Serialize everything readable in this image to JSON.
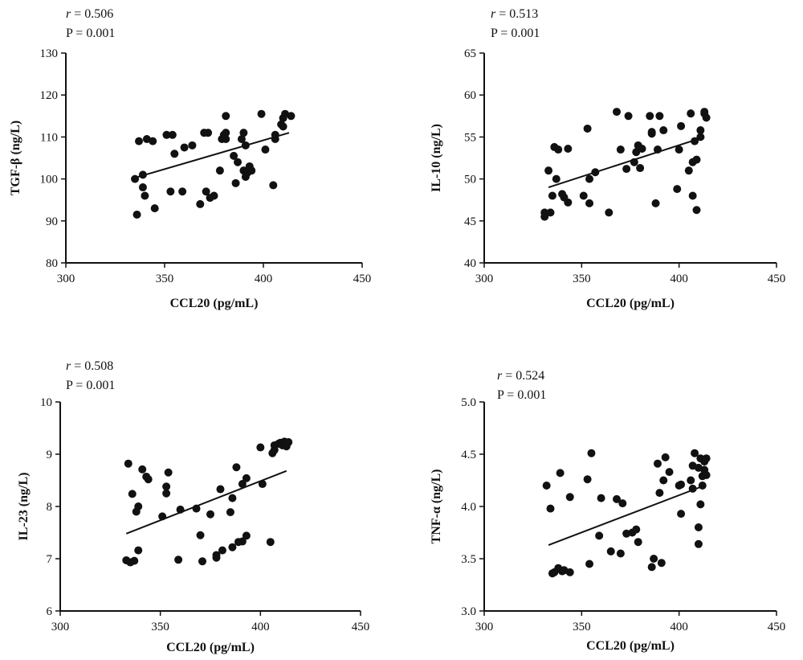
{
  "chart_data": [
    {
      "type": "scatter",
      "xlabel": "CCL20 (pg/mL)",
      "ylabel": "TGF-β (ng/L)",
      "xlim": [
        300,
        450
      ],
      "ylim": [
        80,
        130
      ],
      "xticks": [
        300,
        350,
        400,
        450
      ],
      "yticks": [
        80,
        90,
        100,
        110,
        120,
        130
      ],
      "stat_r_symbol": "r",
      "stat_r_value": " = 0.506",
      "stat_p": "P = 0.001",
      "grid": false,
      "trendline": {
        "x": [
          333,
          413
        ],
        "y": [
          100,
          111
        ]
      },
      "points": [
        [
          335,
          100
        ],
        [
          336,
          91.5
        ],
        [
          337,
          109
        ],
        [
          339,
          101
        ],
        [
          339,
          98
        ],
        [
          340,
          96
        ],
        [
          341,
          109.5
        ],
        [
          344,
          109
        ],
        [
          345,
          93
        ],
        [
          351,
          110.5
        ],
        [
          353,
          97
        ],
        [
          354,
          110.5
        ],
        [
          355,
          106
        ],
        [
          359,
          97
        ],
        [
          360,
          107.5
        ],
        [
          364,
          108
        ],
        [
          368,
          94
        ],
        [
          370,
          111
        ],
        [
          371,
          97
        ],
        [
          372,
          111
        ],
        [
          373,
          95.5
        ],
        [
          375,
          96
        ],
        [
          378,
          102
        ],
        [
          379,
          109.5
        ],
        [
          380,
          110.5
        ],
        [
          381,
          115
        ],
        [
          381,
          111
        ],
        [
          381,
          109.5
        ],
        [
          385,
          105.5
        ],
        [
          386,
          99
        ],
        [
          387,
          104
        ],
        [
          389,
          109.5
        ],
        [
          390,
          111
        ],
        [
          390,
          102
        ],
        [
          391,
          100.5
        ],
        [
          391,
          108
        ],
        [
          392,
          101.5
        ],
        [
          393,
          103
        ],
        [
          394,
          102
        ],
        [
          399,
          115.5
        ],
        [
          401,
          107
        ],
        [
          405,
          98.5
        ],
        [
          406,
          109.5
        ],
        [
          406,
          110.5
        ],
        [
          409,
          113
        ],
        [
          410,
          112.5
        ],
        [
          410,
          114.5
        ],
        [
          411,
          115.5
        ],
        [
          414,
          115
        ]
      ]
    },
    {
      "type": "scatter",
      "xlabel": "CCL20 (pg/mL)",
      "ylabel": "IL-10 (ng/L)",
      "xlim": [
        300,
        450
      ],
      "ylim": [
        40,
        65
      ],
      "xticks": [
        300,
        350,
        400,
        450
      ],
      "yticks": [
        40,
        45,
        50,
        55,
        60,
        65
      ],
      "stat_r_symbol": "r",
      "stat_r_value": " = 0.513",
      "stat_p": "P = 0.001",
      "grid": false,
      "trendline": {
        "x": [
          333,
          413
        ],
        "y": [
          49,
          55
        ]
      },
      "points": [
        [
          331,
          45.5
        ],
        [
          331,
          46
        ],
        [
          333,
          51
        ],
        [
          334,
          46
        ],
        [
          335,
          48
        ],
        [
          336,
          53.8
        ],
        [
          337,
          50
        ],
        [
          338,
          53.5
        ],
        [
          340,
          48.2
        ],
        [
          341,
          47.8
        ],
        [
          343,
          47.2
        ],
        [
          343,
          53.6
        ],
        [
          351,
          48
        ],
        [
          353,
          56
        ],
        [
          354,
          50
        ],
        [
          354,
          47.1
        ],
        [
          357,
          50.8
        ],
        [
          364,
          46
        ],
        [
          368,
          58
        ],
        [
          370,
          53.5
        ],
        [
          373,
          51.2
        ],
        [
          374,
          57.5
        ],
        [
          377,
          52
        ],
        [
          378,
          53.2
        ],
        [
          379,
          54
        ],
        [
          380,
          51.3
        ],
        [
          381,
          53.6
        ],
        [
          385,
          57.5
        ],
        [
          386,
          55.4
        ],
        [
          386,
          55.6
        ],
        [
          388,
          47.1
        ],
        [
          389,
          53.5
        ],
        [
          390,
          57.5
        ],
        [
          392,
          55.8
        ],
        [
          399,
          48.8
        ],
        [
          400,
          53.5
        ],
        [
          401,
          56.3
        ],
        [
          405,
          51
        ],
        [
          406,
          57.8
        ],
        [
          407,
          52
        ],
        [
          407,
          48
        ],
        [
          408,
          54.5
        ],
        [
          409,
          52.3
        ],
        [
          409,
          46.3
        ],
        [
          411,
          55
        ],
        [
          411,
          55.8
        ],
        [
          413,
          58
        ],
        [
          413,
          57.8
        ],
        [
          414,
          57.3
        ]
      ]
    },
    {
      "type": "scatter",
      "xlabel": "CCL20 (pg/mL)",
      "ylabel": "IL-23 (ng/L)",
      "xlim": [
        300,
        450
      ],
      "ylim": [
        6,
        10
      ],
      "xticks": [
        300,
        350,
        400,
        450
      ],
      "yticks": [
        6,
        7,
        8,
        9,
        10
      ],
      "stat_r_symbol": "r",
      "stat_r_value": " = 0.508",
      "stat_p": "P = 0.001",
      "grid": false,
      "trendline": {
        "x": [
          333,
          413
        ],
        "y": [
          7.48,
          8.68
        ]
      },
      "points": [
        [
          333,
          6.97
        ],
        [
          334,
          8.82
        ],
        [
          335,
          6.93
        ],
        [
          336,
          8.24
        ],
        [
          337,
          6.96
        ],
        [
          338,
          7.9
        ],
        [
          339,
          8.0
        ],
        [
          339,
          7.16
        ],
        [
          341,
          8.71
        ],
        [
          343,
          8.57
        ],
        [
          344,
          8.52
        ],
        [
          351,
          7.81
        ],
        [
          353,
          8.25
        ],
        [
          353,
          8.38
        ],
        [
          354,
          8.65
        ],
        [
          359,
          6.98
        ],
        [
          360,
          7.94
        ],
        [
          368,
          7.96
        ],
        [
          370,
          7.45
        ],
        [
          371,
          6.95
        ],
        [
          375,
          7.85
        ],
        [
          378,
          7.02
        ],
        [
          378,
          7.07
        ],
        [
          380,
          8.33
        ],
        [
          381,
          7.16
        ],
        [
          385,
          7.89
        ],
        [
          386,
          8.16
        ],
        [
          386,
          7.22
        ],
        [
          388,
          8.75
        ],
        [
          389,
          7.32
        ],
        [
          391,
          7.33
        ],
        [
          391,
          8.43
        ],
        [
          393,
          7.44
        ],
        [
          393,
          8.54
        ],
        [
          400,
          9.13
        ],
        [
          401,
          8.43
        ],
        [
          405,
          7.32
        ],
        [
          406,
          9.02
        ],
        [
          407,
          9.08
        ],
        [
          407,
          9.17
        ],
        [
          409,
          9.2
        ],
        [
          410,
          9.22
        ],
        [
          411,
          9.17
        ],
        [
          412,
          9.24
        ],
        [
          413,
          9.15
        ],
        [
          413,
          9.22
        ],
        [
          414,
          9.23
        ]
      ]
    },
    {
      "type": "scatter",
      "xlabel": "CCL20 (pg/mL)",
      "ylabel": "TNF-α (ng/L)",
      "xlim": [
        300,
        450
      ],
      "ylim": [
        3.0,
        5.0
      ],
      "xticks": [
        300,
        350,
        400,
        450
      ],
      "yticks": [
        "3.0",
        "3.5",
        "4.0",
        "4.5",
        "5.0"
      ],
      "stat_r_symbol": "r",
      "stat_r_value": " = 0.524",
      "stat_p": "P = 0.001",
      "grid": false,
      "trendline": {
        "x": [
          333,
          413
        ],
        "y": [
          3.63,
          4.2
        ]
      },
      "points": [
        [
          332,
          4.2
        ],
        [
          334,
          3.98
        ],
        [
          335,
          3.36
        ],
        [
          336,
          3.37
        ],
        [
          338,
          3.41
        ],
        [
          339,
          4.32
        ],
        [
          340,
          3.38
        ],
        [
          341,
          3.39
        ],
        [
          344,
          4.09
        ],
        [
          344,
          3.37
        ],
        [
          353,
          4.26
        ],
        [
          354,
          3.45
        ],
        [
          355,
          4.51
        ],
        [
          359,
          3.72
        ],
        [
          360,
          4.08
        ],
        [
          365,
          3.57
        ],
        [
          368,
          4.07
        ],
        [
          370,
          3.55
        ],
        [
          371,
          4.03
        ],
        [
          373,
          3.74
        ],
        [
          376,
          3.75
        ],
        [
          378,
          3.78
        ],
        [
          379,
          3.66
        ],
        [
          386,
          3.42
        ],
        [
          387,
          3.5
        ],
        [
          389,
          4.41
        ],
        [
          390,
          4.13
        ],
        [
          391,
          3.46
        ],
        [
          392,
          4.25
        ],
        [
          393,
          4.47
        ],
        [
          395,
          4.33
        ],
        [
          400,
          4.2
        ],
        [
          401,
          4.21
        ],
        [
          401,
          3.93
        ],
        [
          406,
          4.25
        ],
        [
          407,
          4.17
        ],
        [
          407,
          4.39
        ],
        [
          408,
          4.51
        ],
        [
          410,
          4.37
        ],
        [
          410,
          3.8
        ],
        [
          410,
          3.64
        ],
        [
          411,
          4.02
        ],
        [
          411,
          4.46
        ],
        [
          412,
          4.2
        ],
        [
          412,
          4.29
        ],
        [
          413,
          4.35
        ],
        [
          413,
          4.43
        ],
        [
          414,
          4.46
        ],
        [
          414,
          4.3
        ]
      ]
    }
  ]
}
